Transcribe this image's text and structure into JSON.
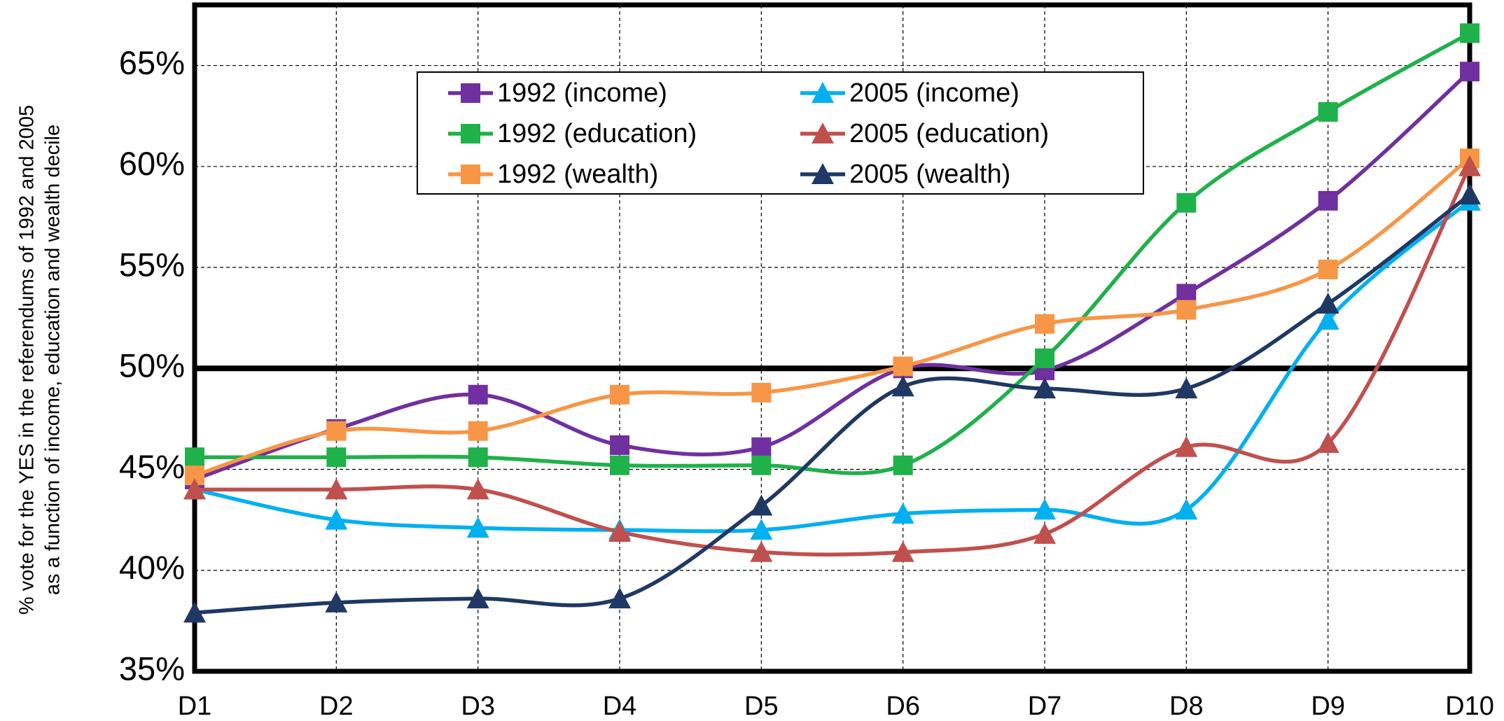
{
  "chart_data": {
    "type": "line",
    "ylabel": [
      "% vote for the YES in the referendums of 1992 and 2005",
      "as a function of income, education and wealth decile"
    ],
    "categories": [
      "D1",
      "D2",
      "D3",
      "D4",
      "D5",
      "D6",
      "D7",
      "D8",
      "D9",
      "D10"
    ],
    "ylim": [
      35,
      68
    ],
    "yticks": [
      {
        "value": 35,
        "label": "35%"
      },
      {
        "value": 40,
        "label": "40%"
      },
      {
        "value": 45,
        "label": "45%"
      },
      {
        "value": 50,
        "label": "50%"
      },
      {
        "value": 55,
        "label": "55%"
      },
      {
        "value": 60,
        "label": "60%"
      },
      {
        "value": 65,
        "label": "65%"
      }
    ],
    "reference_line": 50,
    "grid": true,
    "series": [
      {
        "name": "1992 (income)",
        "color": "#7030a0",
        "marker": "square",
        "values": [
          44.5,
          47.0,
          48.7,
          46.2,
          46.1,
          50.0,
          49.9,
          53.7,
          58.3,
          64.7
        ]
      },
      {
        "name": "1992 (education)",
        "color": "#1fb14a",
        "marker": "square",
        "values": [
          45.6,
          45.6,
          45.6,
          45.2,
          45.2,
          45.2,
          50.5,
          58.2,
          62.7,
          66.6
        ]
      },
      {
        "name": "1992 (wealth)",
        "color": "#f79646",
        "marker": "square",
        "values": [
          44.7,
          46.9,
          46.9,
          48.7,
          48.8,
          50.1,
          52.2,
          52.9,
          54.9,
          60.4
        ]
      },
      {
        "name": "2005 (income)",
        "color": "#00b0f0",
        "marker": "triangle",
        "values": [
          44.0,
          42.5,
          42.1,
          42.0,
          42.0,
          42.8,
          43.0,
          43.0,
          52.4,
          58.3
        ]
      },
      {
        "name": "2005 (education)",
        "color": "#c0504d",
        "marker": "triangle",
        "values": [
          44.0,
          44.0,
          44.0,
          41.9,
          40.9,
          40.9,
          41.8,
          46.1,
          46.3,
          60.0
        ]
      },
      {
        "name": "2005 (wealth)",
        "color": "#1f3864",
        "marker": "triangle",
        "values": [
          37.9,
          38.4,
          38.6,
          38.6,
          43.2,
          49.1,
          49.0,
          49.0,
          53.2,
          58.6
        ]
      }
    ]
  }
}
